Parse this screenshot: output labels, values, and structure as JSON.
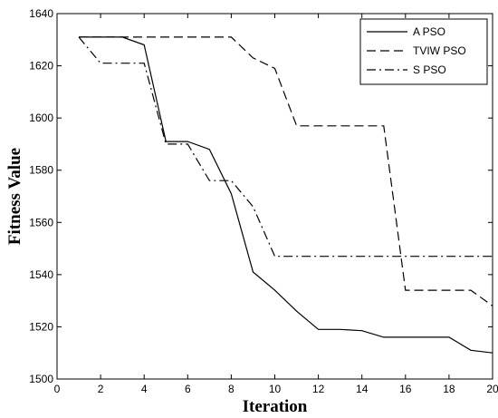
{
  "chart_data": {
    "type": "line",
    "title": "",
    "xlabel": "Iteration",
    "ylabel": "Fitness Value",
    "xlim": [
      0,
      20
    ],
    "ylim": [
      1500,
      1640
    ],
    "xticks": [
      0,
      2,
      4,
      6,
      8,
      10,
      12,
      14,
      16,
      18,
      20
    ],
    "yticks": [
      1500,
      1520,
      1540,
      1560,
      1580,
      1600,
      1620,
      1640
    ],
    "grid": false,
    "legend_position": "top-right",
    "series": [
      {
        "name": "A PSO",
        "style": "solid",
        "color": "#000000",
        "x": [
          1,
          2,
          3,
          4,
          5,
          6,
          7,
          8,
          9,
          10,
          11,
          12,
          13,
          14,
          15,
          16,
          17,
          18,
          19,
          20
        ],
        "y": [
          1631,
          1631,
          1631,
          1628,
          1591,
          1591,
          1588,
          1571,
          1541,
          1534,
          1526,
          1519,
          1519,
          1518.5,
          1516,
          1516,
          1516,
          1516,
          1511,
          1510
        ]
      },
      {
        "name": "TVIW PSO",
        "style": "dashed",
        "color": "#000000",
        "x": [
          1,
          2,
          3,
          4,
          5,
          6,
          7,
          8,
          9,
          10,
          11,
          12,
          13,
          14,
          15,
          16,
          17,
          18,
          19,
          20
        ],
        "y": [
          1631,
          1631,
          1631,
          1631,
          1631,
          1631,
          1631,
          1631,
          1623,
          1619,
          1597,
          1597,
          1597,
          1597,
          1597,
          1534,
          1534,
          1534,
          1534,
          1528
        ]
      },
      {
        "name": "S PSO",
        "style": "dashdot",
        "color": "#000000",
        "x": [
          1,
          2,
          3,
          4,
          5,
          6,
          7,
          8,
          9,
          10,
          11,
          12,
          13,
          14,
          15,
          16,
          17,
          18,
          19,
          20
        ],
        "y": [
          1631,
          1621,
          1621,
          1621,
          1590,
          1590,
          1576,
          1576,
          1566,
          1547,
          1547,
          1547,
          1547,
          1547,
          1547,
          1547,
          1547,
          1547,
          1547,
          1547
        ]
      }
    ]
  }
}
